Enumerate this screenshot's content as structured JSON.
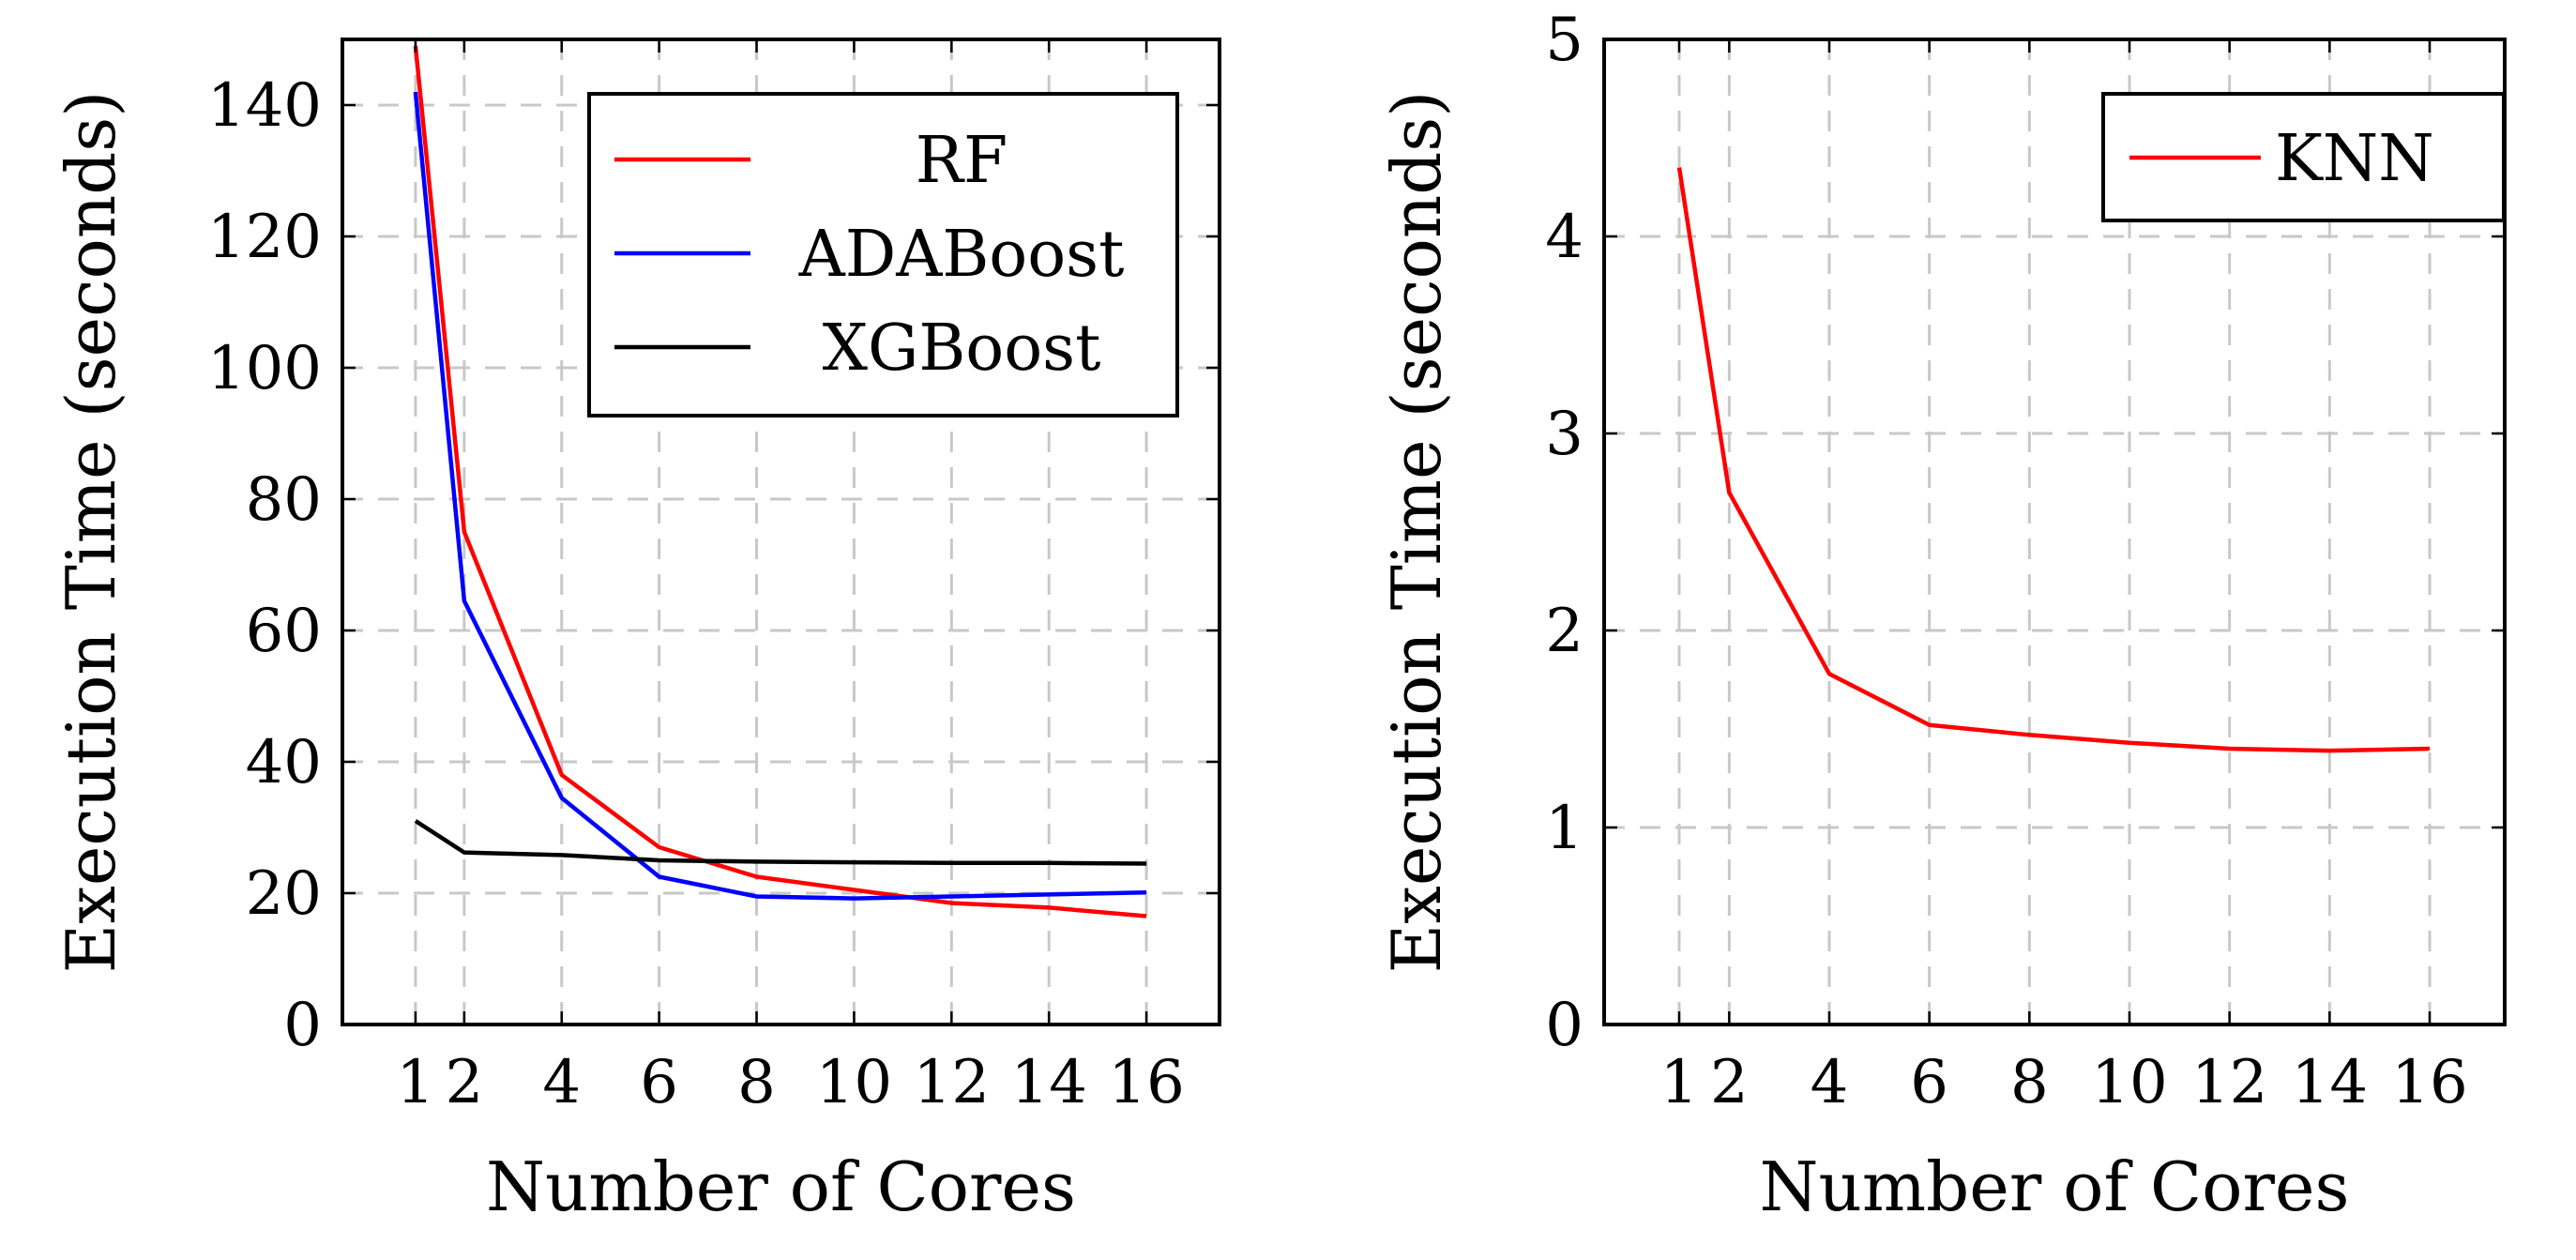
{
  "chart_data": [
    {
      "type": "line",
      "xlabel": "Number of Cores",
      "ylabel": "Execution Time (seconds)",
      "xticks": [
        1,
        2,
        4,
        6,
        8,
        10,
        12,
        14,
        16
      ],
      "yticks": [
        0,
        20,
        40,
        60,
        80,
        100,
        120,
        140
      ],
      "xlim": [
        -0.5,
        17.5
      ],
      "ylim": [
        0,
        150
      ],
      "legend_position": "top-right",
      "series": [
        {
          "name": "RF",
          "color": "#ff0000",
          "x": [
            1,
            2,
            4,
            6,
            8,
            10,
            12,
            14,
            16
          ],
          "y": [
            149,
            75,
            38,
            27,
            22.5,
            20.5,
            18.5,
            17.8,
            16.5
          ]
        },
        {
          "name": "ADABoost",
          "color": "#0000ff",
          "x": [
            1,
            2,
            4,
            6,
            8,
            10,
            12,
            14,
            16
          ],
          "y": [
            142,
            64.5,
            34.5,
            22.5,
            19.5,
            19.2,
            19.5,
            19.8,
            20.1
          ]
        },
        {
          "name": "XGBoost",
          "color": "#000000",
          "x": [
            1,
            2,
            4,
            6,
            8,
            10,
            12,
            14,
            16
          ],
          "y": [
            31,
            26.2,
            25.8,
            25.0,
            24.8,
            24.7,
            24.6,
            24.6,
            24.5
          ]
        }
      ]
    },
    {
      "type": "line",
      "xlabel": "Number of Cores",
      "ylabel": "Execution Time (seconds)",
      "xticks": [
        1,
        2,
        4,
        6,
        8,
        10,
        12,
        14,
        16
      ],
      "yticks": [
        0,
        1,
        2,
        3,
        4,
        5
      ],
      "xlim": [
        -0.5,
        17.5
      ],
      "ylim": [
        0,
        5
      ],
      "legend_position": "top-right",
      "series": [
        {
          "name": "KNN",
          "color": "#ff0000",
          "x": [
            1,
            2,
            4,
            6,
            8,
            10,
            12,
            14,
            16
          ],
          "y": [
            4.35,
            2.7,
            1.78,
            1.52,
            1.47,
            1.43,
            1.4,
            1.39,
            1.4
          ]
        }
      ]
    }
  ]
}
